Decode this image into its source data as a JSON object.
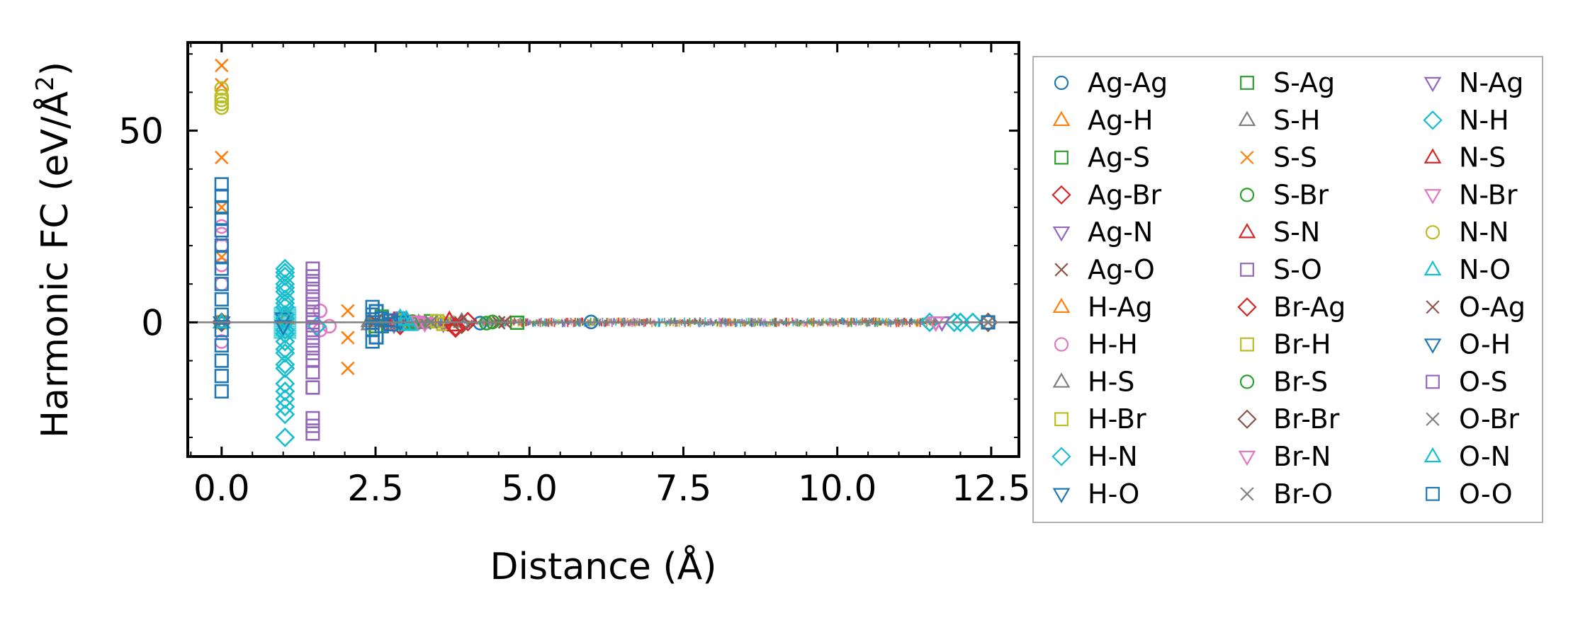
{
  "chart_data": {
    "type": "scatter",
    "title": "",
    "xlabel": "Distance (Å)",
    "ylabel_main": "Harmonic FC (eV/Å",
    "ylabel_sup": "2",
    "ylabel_end": ")",
    "xlim": [
      -0.55,
      12.95
    ],
    "ylim": [
      -35,
      73
    ],
    "xticks": [
      0.0,
      2.5,
      5.0,
      7.5,
      10.0,
      12.5
    ],
    "xtick_labels": [
      "0.0",
      "2.5",
      "5.0",
      "7.5",
      "10.0",
      "12.5"
    ],
    "yticks": [
      0,
      50
    ],
    "ytick_labels": [
      "0",
      "50"
    ],
    "zero_line": true,
    "grid": false,
    "legend_position": "right-outside",
    "legend_columns": 3,
    "series": [
      {
        "name": "Ag-Ag",
        "marker": "circle",
        "color": "#1f77b4",
        "points": [
          [
            0.0,
            0
          ],
          [
            3.0,
            0.3
          ],
          [
            4.2,
            -0.2
          ],
          [
            6.0,
            0.1
          ]
        ]
      },
      {
        "name": "Ag-H",
        "marker": "triangle-up",
        "color": "#ff7f0e",
        "points": [
          [
            0.0,
            0
          ],
          [
            1.05,
            1.5
          ],
          [
            2.9,
            0.5
          ]
        ]
      },
      {
        "name": "Ag-S",
        "marker": "square",
        "color": "#2ca02c",
        "points": [
          [
            0.0,
            0
          ],
          [
            2.5,
            -1
          ],
          [
            2.6,
            1.5
          ],
          [
            3.4,
            0.3
          ]
        ]
      },
      {
        "name": "Ag-Br",
        "marker": "diamond",
        "color": "#d62728",
        "points": [
          [
            0.0,
            0
          ],
          [
            2.9,
            -0.8
          ],
          [
            3.8,
            -1.5
          ],
          [
            4.0,
            0.2
          ]
        ]
      },
      {
        "name": "Ag-N",
        "marker": "triangle-down",
        "color": "#9467bd",
        "points": [
          [
            0.0,
            0
          ],
          [
            2.8,
            0.6
          ],
          [
            3.6,
            -0.3
          ]
        ]
      },
      {
        "name": "Ag-O",
        "marker": "x",
        "color": "#8c564b",
        "points": [
          [
            0.0,
            0
          ],
          [
            2.5,
            0.5
          ],
          [
            4.5,
            -0.1
          ]
        ]
      },
      {
        "name": "H-Ag",
        "marker": "triangle-up",
        "color": "#ff7f0e",
        "points": [
          [
            0.0,
            0
          ],
          [
            1.05,
            1.0
          ],
          [
            2.9,
            0.6
          ]
        ]
      },
      {
        "name": "H-H",
        "marker": "circle",
        "color": "#e377c2",
        "points": [
          [
            0.0,
            25
          ],
          [
            0.0,
            23
          ],
          [
            0.0,
            20
          ],
          [
            0.0,
            15
          ],
          [
            0.0,
            10
          ],
          [
            0.0,
            -5
          ],
          [
            1.6,
            3
          ],
          [
            1.6,
            -2
          ],
          [
            1.75,
            -1
          ]
        ]
      },
      {
        "name": "H-S",
        "marker": "triangle-up",
        "color": "#7f7f7f",
        "points": [
          [
            0.0,
            0
          ],
          [
            2.4,
            0.3
          ],
          [
            3.2,
            -0.2
          ]
        ]
      },
      {
        "name": "H-Br",
        "marker": "square",
        "color": "#bcbd22",
        "points": [
          [
            0.0,
            0
          ],
          [
            2.9,
            0.4
          ],
          [
            3.6,
            -0.4
          ]
        ]
      },
      {
        "name": "H-N",
        "marker": "diamond",
        "color": "#17becf",
        "points": [
          [
            1.03,
            14
          ],
          [
            1.03,
            12
          ],
          [
            1.03,
            10
          ],
          [
            1.03,
            8
          ],
          [
            1.03,
            6
          ],
          [
            1.03,
            4
          ],
          [
            1.03,
            2
          ],
          [
            1.03,
            0
          ],
          [
            1.03,
            -2
          ],
          [
            1.03,
            -5
          ],
          [
            1.03,
            -8
          ],
          [
            1.03,
            -12
          ],
          [
            1.03,
            -16
          ],
          [
            1.03,
            -20
          ],
          [
            1.03,
            -24
          ],
          [
            1.03,
            -30
          ],
          [
            1.55,
            -1
          ],
          [
            11.5,
            0
          ],
          [
            11.9,
            0
          ],
          [
            12.2,
            0
          ]
        ]
      },
      {
        "name": "H-O",
        "marker": "triangle-down",
        "color": "#1f77b4",
        "points": [
          [
            0.0,
            0
          ],
          [
            1.0,
            1
          ],
          [
            2.9,
            -0.3
          ]
        ]
      },
      {
        "name": "S-Ag",
        "marker": "square",
        "color": "#2ca02c",
        "points": [
          [
            0.0,
            0
          ],
          [
            2.6,
            1.0
          ],
          [
            4.8,
            -0.1
          ]
        ]
      },
      {
        "name": "S-H",
        "marker": "triangle-up",
        "color": "#7f7f7f",
        "points": [
          [
            0.0,
            0
          ],
          [
            2.4,
            -0.5
          ],
          [
            3.9,
            0.2
          ]
        ]
      },
      {
        "name": "S-S",
        "marker": "x",
        "color": "#ff7f0e",
        "points": [
          [
            0.0,
            67
          ],
          [
            0.0,
            62
          ],
          [
            0.0,
            43
          ],
          [
            0.0,
            30
          ],
          [
            0.0,
            17
          ],
          [
            2.05,
            3
          ],
          [
            2.05,
            -4
          ],
          [
            2.05,
            -12
          ]
        ]
      },
      {
        "name": "S-Br",
        "marker": "circle",
        "color": "#2ca02c",
        "points": [
          [
            0.0,
            0
          ],
          [
            3.1,
            0.2
          ],
          [
            4.3,
            -0.2
          ]
        ]
      },
      {
        "name": "S-N",
        "marker": "triangle-up",
        "color": "#d62728",
        "points": [
          [
            0.0,
            0
          ],
          [
            2.8,
            -0.5
          ],
          [
            3.7,
            0.6
          ]
        ]
      },
      {
        "name": "S-O",
        "marker": "square",
        "color": "#9467bd",
        "points": [
          [
            1.48,
            14
          ],
          [
            1.48,
            10
          ],
          [
            1.48,
            6
          ],
          [
            1.48,
            2
          ],
          [
            1.48,
            -2
          ],
          [
            1.48,
            -6
          ],
          [
            1.48,
            -10
          ],
          [
            1.48,
            -17
          ],
          [
            1.48,
            -25
          ],
          [
            1.48,
            -29
          ],
          [
            2.9,
            1
          ]
        ]
      },
      {
        "name": "Br-Ag",
        "marker": "diamond",
        "color": "#d62728",
        "points": [
          [
            0.0,
            0
          ],
          [
            2.9,
            0.7
          ],
          [
            3.8,
            -1.2
          ]
        ]
      },
      {
        "name": "Br-H",
        "marker": "square",
        "color": "#bcbd22",
        "points": [
          [
            0.0,
            0
          ],
          [
            2.8,
            -0.4
          ],
          [
            3.5,
            0.3
          ]
        ]
      },
      {
        "name": "Br-S",
        "marker": "circle",
        "color": "#2ca02c",
        "points": [
          [
            0.0,
            0
          ],
          [
            3.1,
            -0.3
          ],
          [
            4.4,
            0.1
          ]
        ]
      },
      {
        "name": "Br-Br",
        "marker": "diamond",
        "color": "#8c564b",
        "points": [
          [
            0.0,
            0
          ],
          [
            3.9,
            -0.5
          ],
          [
            12.45,
            0
          ]
        ]
      },
      {
        "name": "Br-N",
        "marker": "triangle-down",
        "color": "#e377c2",
        "points": [
          [
            0.0,
            0
          ],
          [
            3.2,
            0.2
          ],
          [
            11.6,
            0
          ]
        ]
      },
      {
        "name": "Br-O",
        "marker": "x",
        "color": "#7f7f7f",
        "points": [
          [
            0.0,
            0
          ],
          [
            3.3,
            -0.2
          ],
          [
            12.45,
            0
          ]
        ]
      },
      {
        "name": "N-Ag",
        "marker": "triangle-down",
        "color": "#9467bd",
        "points": [
          [
            0.0,
            0
          ],
          [
            2.8,
            -0.6
          ],
          [
            11.7,
            0
          ]
        ]
      },
      {
        "name": "N-H",
        "marker": "diamond",
        "color": "#17becf",
        "points": [
          [
            1.03,
            13
          ],
          [
            1.03,
            9
          ],
          [
            1.03,
            5
          ],
          [
            1.03,
            1
          ],
          [
            1.03,
            -3
          ],
          [
            1.03,
            -7
          ],
          [
            1.03,
            -11
          ],
          [
            1.03,
            -18
          ],
          [
            1.03,
            -22
          ],
          [
            12.0,
            0
          ]
        ]
      },
      {
        "name": "N-S",
        "marker": "triangle-up",
        "color": "#d62728",
        "points": [
          [
            0.0,
            0
          ],
          [
            2.8,
            0.4
          ],
          [
            3.8,
            -0.8
          ]
        ]
      },
      {
        "name": "N-Br",
        "marker": "triangle-down",
        "color": "#e377c2",
        "points": [
          [
            0.0,
            0
          ],
          [
            3.3,
            -0.2
          ],
          [
            11.6,
            0
          ]
        ]
      },
      {
        "name": "N-N",
        "marker": "circle",
        "color": "#bcbd22",
        "points": [
          [
            0.0,
            61
          ],
          [
            0.0,
            59
          ],
          [
            0.0,
            58
          ],
          [
            0.0,
            57
          ],
          [
            0.0,
            56
          ]
        ]
      },
      {
        "name": "N-O",
        "marker": "triangle-up",
        "color": "#17becf",
        "points": [
          [
            0.0,
            0
          ],
          [
            2.9,
            1.2
          ],
          [
            2.95,
            -0.5
          ],
          [
            3.0,
            0.8
          ]
        ]
      },
      {
        "name": "O-Ag",
        "marker": "x",
        "color": "#8c564b",
        "points": [
          [
            0.0,
            0
          ],
          [
            2.5,
            0.3
          ],
          [
            4.6,
            0.1
          ]
        ]
      },
      {
        "name": "O-H",
        "marker": "triangle-down",
        "color": "#1f77b4",
        "points": [
          [
            0.0,
            0
          ],
          [
            1.0,
            -1
          ],
          [
            2.9,
            0.2
          ]
        ]
      },
      {
        "name": "O-S",
        "marker": "square",
        "color": "#9467bd",
        "points": [
          [
            1.48,
            12
          ],
          [
            1.48,
            8
          ],
          [
            1.48,
            4
          ],
          [
            1.48,
            0
          ],
          [
            1.48,
            -4
          ],
          [
            1.48,
            -8
          ],
          [
            1.48,
            -13
          ],
          [
            1.48,
            -17
          ],
          [
            1.48,
            -27
          ]
        ]
      },
      {
        "name": "O-Br",
        "marker": "x",
        "color": "#7f7f7f",
        "points": [
          [
            0.0,
            0
          ],
          [
            3.4,
            0.1
          ],
          [
            12.45,
            0
          ]
        ]
      },
      {
        "name": "O-N",
        "marker": "triangle-up",
        "color": "#17becf",
        "points": [
          [
            0.0,
            0
          ],
          [
            2.95,
            0.6
          ],
          [
            3.05,
            -0.7
          ]
        ]
      },
      {
        "name": "O-O",
        "marker": "square",
        "color": "#1f77b4",
        "points": [
          [
            0.0,
            36
          ],
          [
            0.0,
            33
          ],
          [
            0.0,
            30
          ],
          [
            0.0,
            27
          ],
          [
            0.0,
            24
          ],
          [
            0.0,
            20
          ],
          [
            0.0,
            17
          ],
          [
            0.0,
            14
          ],
          [
            0.0,
            10
          ],
          [
            0.0,
            6
          ],
          [
            0.0,
            2
          ],
          [
            0.0,
            -2
          ],
          [
            0.0,
            -6
          ],
          [
            0.0,
            -10
          ],
          [
            0.0,
            -14
          ],
          [
            0.0,
            -18
          ],
          [
            2.45,
            4
          ],
          [
            2.45,
            2
          ],
          [
            2.45,
            0
          ],
          [
            2.45,
            -2
          ],
          [
            2.45,
            -5
          ],
          [
            2.6,
            1
          ],
          [
            2.6,
            -1
          ],
          [
            2.75,
            0.5
          ],
          [
            2.75,
            -0.5
          ],
          [
            12.45,
            0
          ]
        ]
      }
    ]
  }
}
